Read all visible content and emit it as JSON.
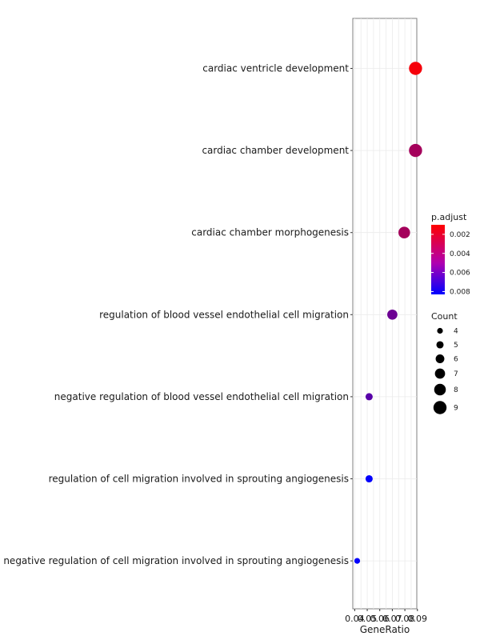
{
  "chart_data": {
    "type": "scatter",
    "xlabel": "GeneRatio",
    "x_ticks": [
      0.04,
      0.05,
      0.06,
      0.07,
      0.08,
      0.09
    ],
    "x_tick_labels": [
      "0.04",
      "0.05",
      "0.06",
      "0.07",
      "0.08",
      "0.09"
    ],
    "xlim": [
      0.0385,
      0.0895
    ],
    "grid": true,
    "terms": [
      "cardiac ventricle development",
      "cardiac chamber development",
      "cardiac chamber morphogenesis",
      "regulation of blood vessel endothelial cell migration",
      "negative regulation of blood vessel endothelial cell migration",
      "regulation of cell migration involved in sprouting angiogenesis",
      "negative regulation of cell migration involved in sprouting angiogenesis"
    ],
    "points": [
      {
        "term": "cardiac ventricle development",
        "gene_ratio": 0.0885,
        "count": 9,
        "p_adjust": 0.0013
      },
      {
        "term": "cardiac chamber development",
        "gene_ratio": 0.0885,
        "count": 9,
        "p_adjust": 0.0036
      },
      {
        "term": "cardiac chamber morphogenesis",
        "gene_ratio": 0.0795,
        "count": 8,
        "p_adjust": 0.0036
      },
      {
        "term": "regulation of blood vessel endothelial cell migration",
        "gene_ratio": 0.07,
        "count": 7,
        "p_adjust": 0.0052
      },
      {
        "term": "negative regulation of blood vessel endothelial cell migration",
        "gene_ratio": 0.0515,
        "count": 5,
        "p_adjust": 0.0058
      },
      {
        "term": "regulation of cell migration involved in sprouting angiogenesis",
        "gene_ratio": 0.0515,
        "count": 5,
        "p_adjust": 0.0082
      },
      {
        "term": "negative regulation of cell migration involved in sprouting angiogenesis",
        "gene_ratio": 0.042,
        "count": 4,
        "p_adjust": 0.0082
      }
    ],
    "color_legend": {
      "title": "p.adjust",
      "min": 0.001,
      "max": 0.0083,
      "ticks": [
        0.002,
        0.004,
        0.006,
        0.008
      ],
      "tick_labels": [
        "0.002",
        "0.004",
        "0.006",
        "0.008"
      ],
      "low_color": "#ff0000",
      "high_color": "#0000ff"
    },
    "size_legend": {
      "title": "Count",
      "values": [
        4,
        5,
        6,
        7,
        8,
        9
      ],
      "labels": [
        "4",
        "5",
        "6",
        "7",
        "8",
        "9"
      ]
    },
    "legend_placement": "right"
  }
}
